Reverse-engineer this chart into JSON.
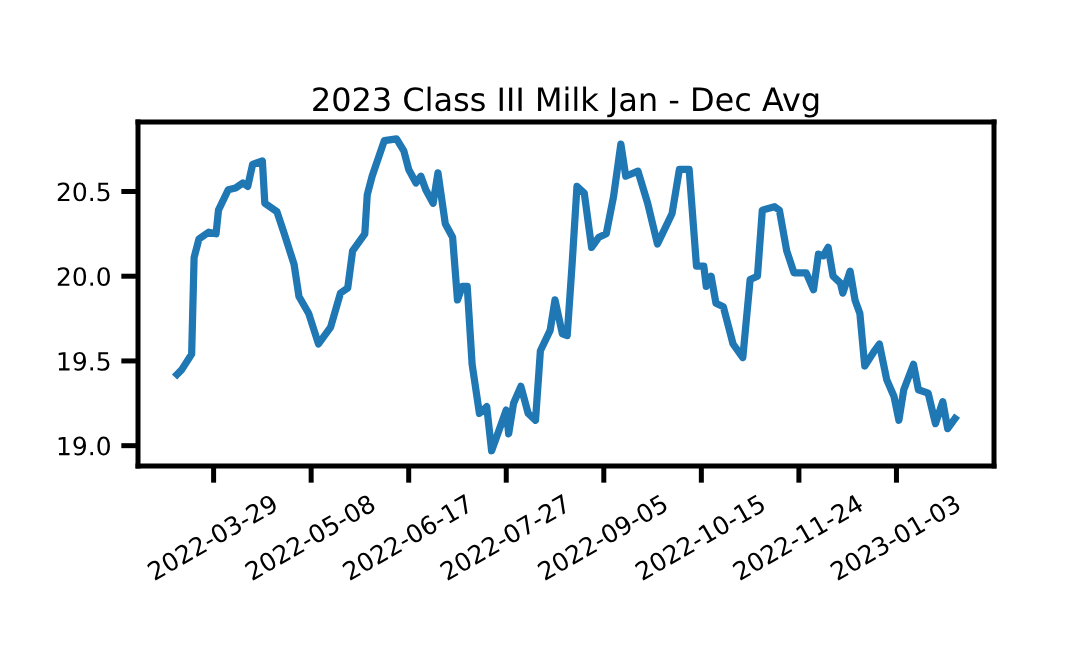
{
  "chart_data": {
    "type": "line",
    "title": "2023 Class III Milk Jan - Dec Avg",
    "x": [
      "2022-03-14",
      "2022-03-16",
      "2022-03-20",
      "2022-03-21",
      "2022-03-23",
      "2022-03-27",
      "2022-03-30",
      "2022-03-31",
      "2022-04-04",
      "2022-04-07",
      "2022-04-10",
      "2022-04-12",
      "2022-04-14",
      "2022-04-18",
      "2022-04-19",
      "2022-04-24",
      "2022-04-27",
      "2022-05-01",
      "2022-05-03",
      "2022-05-07",
      "2022-05-11",
      "2022-05-16",
      "2022-05-20",
      "2022-05-23",
      "2022-05-25",
      "2022-05-30",
      "2022-05-31",
      "2022-06-02",
      "2022-06-07",
      "2022-06-12",
      "2022-06-15",
      "2022-06-17",
      "2022-06-20",
      "2022-06-22",
      "2022-06-24",
      "2022-06-27",
      "2022-06-29",
      "2022-07-02",
      "2022-07-05",
      "2022-07-07",
      "2022-07-09",
      "2022-07-11",
      "2022-07-13",
      "2022-07-16",
      "2022-07-19",
      "2022-07-21",
      "2022-07-24",
      "2022-07-27",
      "2022-07-28",
      "2022-07-30",
      "2022-08-02",
      "2022-08-05",
      "2022-08-08",
      "2022-08-10",
      "2022-08-14",
      "2022-08-16",
      "2022-08-19",
      "2022-08-21",
      "2022-08-23",
      "2022-08-25",
      "2022-08-28",
      "2022-08-31",
      "2022-09-03",
      "2022-09-06",
      "2022-09-09",
      "2022-09-12",
      "2022-09-14",
      "2022-09-19",
      "2022-09-23",
      "2022-09-27",
      "2022-09-29",
      "2022-10-03",
      "2022-10-06",
      "2022-10-10",
      "2022-10-13",
      "2022-10-16",
      "2022-10-17",
      "2022-10-19",
      "2022-10-21",
      "2022-10-24",
      "2022-10-28",
      "2022-11-01",
      "2022-11-04",
      "2022-11-07",
      "2022-11-09",
      "2022-11-14",
      "2022-11-16",
      "2022-11-19",
      "2022-11-22",
      "2022-11-27",
      "2022-11-30",
      "2022-12-02",
      "2022-12-04",
      "2022-12-06",
      "2022-12-08",
      "2022-12-11",
      "2022-12-12",
      "2022-12-15",
      "2022-12-17",
      "2022-12-19",
      "2022-12-21",
      "2022-12-25",
      "2022-12-27",
      "2022-12-30",
      "2023-01-02",
      "2023-01-04",
      "2023-01-06",
      "2023-01-10",
      "2023-01-12",
      "2023-01-16",
      "2023-01-19",
      "2023-01-22",
      "2023-01-24",
      "2023-01-27"
    ],
    "series": [
      {
        "color": "#1f77b4",
        "values": [
          19.42,
          19.45,
          19.54,
          20.11,
          20.22,
          20.26,
          20.25,
          20.39,
          20.51,
          20.52,
          20.55,
          20.53,
          20.66,
          20.68,
          20.43,
          20.38,
          20.25,
          20.07,
          19.88,
          19.78,
          19.6,
          19.7,
          19.9,
          19.93,
          20.15,
          20.25,
          20.48,
          20.59,
          20.8,
          20.81,
          20.74,
          20.63,
          20.55,
          20.59,
          20.51,
          20.43,
          20.61,
          20.31,
          20.23,
          19.86,
          19.94,
          19.94,
          19.48,
          19.19,
          19.23,
          18.97,
          19.09,
          19.21,
          19.07,
          19.25,
          19.35,
          19.19,
          19.15,
          19.56,
          19.68,
          19.86,
          19.66,
          19.65,
          20.07,
          20.53,
          20.49,
          20.17,
          20.23,
          20.25,
          20.47,
          20.78,
          20.59,
          20.62,
          20.43,
          20.19,
          20.25,
          20.37,
          20.63,
          20.63,
          20.06,
          20.06,
          19.94,
          20.0,
          19.84,
          19.82,
          19.6,
          19.52,
          19.98,
          20.0,
          20.39,
          20.41,
          20.39,
          20.15,
          20.02,
          20.02,
          19.92,
          20.13,
          20.12,
          20.17,
          20.0,
          19.96,
          19.9,
          20.03,
          19.86,
          19.78,
          19.47,
          19.56,
          19.6,
          19.39,
          19.29,
          19.15,
          19.33,
          19.48,
          19.33,
          19.31,
          19.13,
          19.26,
          19.1,
          19.16
        ]
      }
    ],
    "xlim": [
      "2022-02-26",
      "2023-02-12"
    ],
    "xticks": [
      "2022-03-29",
      "2022-05-08",
      "2022-06-17",
      "2022-07-27",
      "2022-09-05",
      "2022-10-15",
      "2022-11-24",
      "2023-01-03"
    ],
    "ylim": [
      18.88,
      20.91
    ],
    "yticks": [
      {
        "value": 19.0,
        "label": "19.0"
      },
      {
        "value": 19.5,
        "label": "19.5"
      },
      {
        "value": 20.0,
        "label": "20.0"
      },
      {
        "value": 20.5,
        "label": "20.5"
      }
    ],
    "grid": false,
    "legend": false,
    "marker": "none",
    "line_style": "solid"
  }
}
